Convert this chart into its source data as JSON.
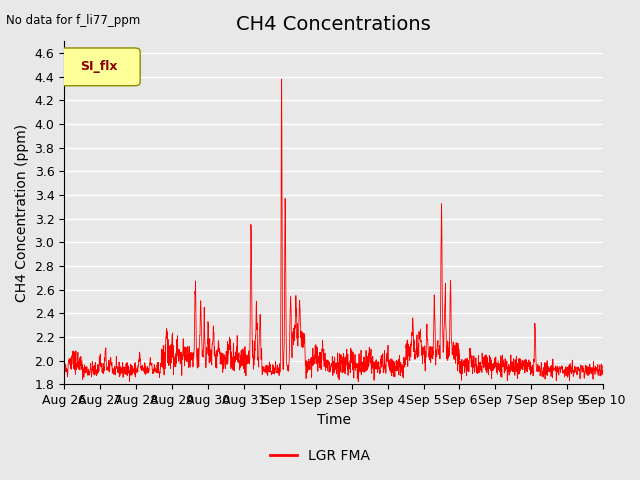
{
  "title": "CH4 Concentrations",
  "top_left_text": "No data for f_li77_ppm",
  "ylabel": "CH4 Concentration (ppm)",
  "xlabel": "Time",
  "ylim": [
    1.8,
    4.7
  ],
  "yticks": [
    1.8,
    2.0,
    2.2,
    2.4,
    2.6,
    2.8,
    3.0,
    3.2,
    3.4,
    3.6,
    3.8,
    4.0,
    4.2,
    4.4,
    4.6
  ],
  "line_color": "#ff0000",
  "line_label": "LGR FMA",
  "legend_label": "SI_flx",
  "legend_box_color": "#ffff99",
  "legend_box_edge": "#8B8B00",
  "background_color": "#e8e8e8",
  "plot_bg_color": "#e8e8e8",
  "grid_color": "#ffffff",
  "title_fontsize": 14,
  "axis_fontsize": 10,
  "tick_fontsize": 9,
  "xtick_labels": [
    "Aug 26",
    "Aug 27",
    "Aug 28",
    "Aug 29",
    "Aug 30",
    "Aug 31",
    "Sep 1",
    "Sep 2",
    "Sep 3",
    "Sep 4",
    "Sep 5",
    "Sep 6",
    "Sep 7",
    "Sep 8",
    "Sep 9",
    "Sep 10"
  ]
}
